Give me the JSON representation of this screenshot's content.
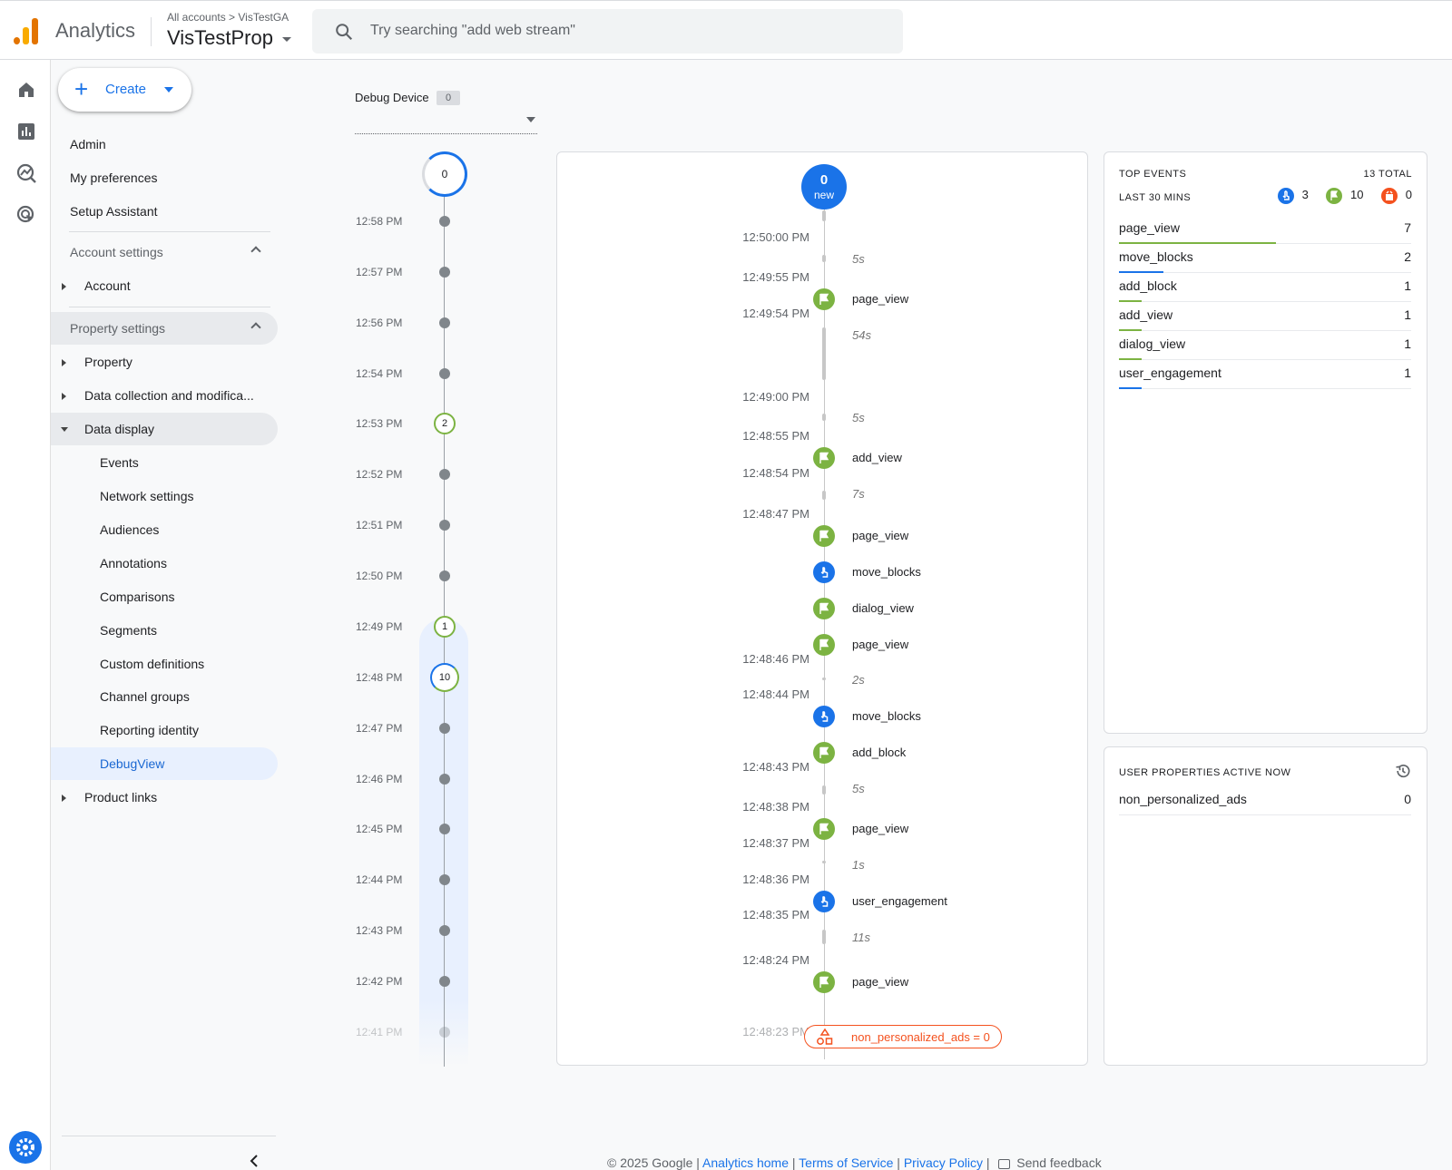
{
  "header": {
    "brand": "Analytics",
    "breadcrumb": "All accounts > VisTestGA",
    "property": "VisTestProp",
    "search_placeholder": "Try searching \"add web stream\""
  },
  "nav": {
    "create_label": "Create",
    "admin": "Admin",
    "my_preferences": "My preferences",
    "setup_assistant": "Setup Assistant",
    "account_settings": "Account settings",
    "account": "Account",
    "property_settings": "Property settings",
    "property": "Property",
    "data_collection": "Data collection and modifica...",
    "data_display": "Data display",
    "sub": [
      "Events",
      "Network settings",
      "Audiences",
      "Annotations",
      "Comparisons",
      "Segments",
      "Custom definitions",
      "Channel groups",
      "Reporting identity",
      "DebugView"
    ],
    "product_links": "Product links"
  },
  "debug_device": {
    "label": "Debug Device",
    "count": "0"
  },
  "minutes": {
    "top_count": "0",
    "rows": [
      {
        "time": "12:58 PM",
        "count": ""
      },
      {
        "time": "12:57 PM",
        "count": ""
      },
      {
        "time": "12:56 PM",
        "count": ""
      },
      {
        "time": "12:54 PM",
        "count": ""
      },
      {
        "time": "12:53 PM",
        "count": "2"
      },
      {
        "time": "12:52 PM",
        "count": ""
      },
      {
        "time": "12:51 PM",
        "count": ""
      },
      {
        "time": "12:50 PM",
        "count": ""
      },
      {
        "time": "12:49 PM",
        "count": "1"
      },
      {
        "time": "12:48 PM",
        "count": "10"
      },
      {
        "time": "12:47 PM",
        "count": ""
      },
      {
        "time": "12:46 PM",
        "count": ""
      },
      {
        "time": "12:45 PM",
        "count": ""
      },
      {
        "time": "12:44 PM",
        "count": ""
      },
      {
        "time": "12:43 PM",
        "count": ""
      },
      {
        "time": "12:42 PM",
        "count": ""
      },
      {
        "time": "12:41 PM",
        "count": ""
      }
    ]
  },
  "seconds": {
    "new_count": "0",
    "new_label": "new",
    "times": [
      "12:50:00 PM",
      "12:49:55 PM",
      "12:49:54 PM",
      "12:49:00 PM",
      "12:48:55 PM",
      "12:48:54 PM",
      "12:48:47 PM",
      "12:48:46 PM",
      "12:48:44 PM",
      "12:48:43 PM",
      "12:48:38 PM",
      "12:48:37 PM",
      "12:48:36 PM",
      "12:48:35 PM",
      "12:48:24 PM",
      "12:48:23 PM"
    ],
    "gaps": [
      "5s",
      "54s",
      "5s",
      "7s",
      "2s",
      "5s",
      "1s",
      "11s"
    ],
    "events": [
      {
        "name": "page_view",
        "kind": "conversion"
      },
      {
        "name": "add_view",
        "kind": "conversion"
      },
      {
        "name": "page_view",
        "kind": "conversion"
      },
      {
        "name": "move_blocks",
        "kind": "event"
      },
      {
        "name": "dialog_view",
        "kind": "conversion"
      },
      {
        "name": "page_view",
        "kind": "conversion"
      },
      {
        "name": "move_blocks",
        "kind": "event"
      },
      {
        "name": "add_block",
        "kind": "conversion"
      },
      {
        "name": "page_view",
        "kind": "conversion"
      },
      {
        "name": "user_engagement",
        "kind": "event"
      },
      {
        "name": "page_view",
        "kind": "conversion"
      }
    ],
    "user_prop_chip": "non_personalized_ads = 0"
  },
  "top_events": {
    "title": "TOP EVENTS",
    "total": "13 TOTAL",
    "subtitle": "LAST 30 MINS",
    "counts": {
      "event": "3",
      "conversion": "10",
      "error": "0"
    },
    "rows": [
      {
        "name": "page_view",
        "count": "7",
        "color": "#7cb342"
      },
      {
        "name": "move_blocks",
        "count": "2",
        "color": "#1a73e8"
      },
      {
        "name": "add_block",
        "count": "1",
        "color": "#7cb342"
      },
      {
        "name": "add_view",
        "count": "1",
        "color": "#7cb342"
      },
      {
        "name": "dialog_view",
        "count": "1",
        "color": "#7cb342"
      },
      {
        "name": "user_engagement",
        "count": "1",
        "color": "#1a73e8"
      }
    ]
  },
  "user_properties": {
    "title": "USER PROPERTIES ACTIVE NOW",
    "rows": [
      {
        "name": "non_personalized_ads",
        "value": "0"
      }
    ]
  },
  "footer": {
    "copyright": "© 2025 Google",
    "analytics_home": "Analytics home",
    "terms": "Terms of Service",
    "privacy": "Privacy Policy",
    "feedback": "Send feedback"
  },
  "colors": {
    "accent": "#1a73e8",
    "conversion": "#7cb342",
    "error": "#f4511e"
  }
}
